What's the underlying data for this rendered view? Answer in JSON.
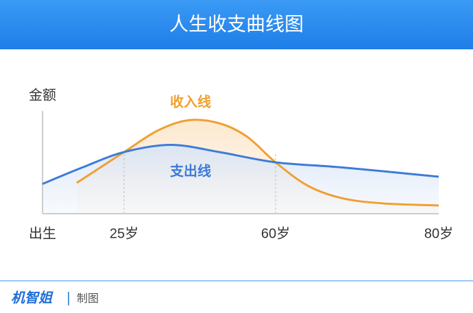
{
  "chart_data": {
    "type": "line",
    "title": "人生收支曲线图",
    "ylabel": "金额",
    "xlim": [
      0,
      80
    ],
    "xticks": [
      {
        "value": 0,
        "label": "出生"
      },
      {
        "value": 25,
        "label": "25岁"
      },
      {
        "value": 60,
        "label": "60岁"
      },
      {
        "value": 80,
        "label": "80岁"
      }
    ],
    "ylim": [
      0,
      100
    ],
    "series": [
      {
        "name": "收入线",
        "color": "#f0a030",
        "x": [
          10.5,
          25,
          32.8,
          39.9,
          47,
          53.4,
          60,
          64,
          68.2,
          73.2,
          80
        ],
        "values": [
          30,
          60,
          81,
          91,
          88,
          75,
          50,
          27,
          15,
          10,
          8
        ]
      },
      {
        "name": "支出线",
        "color": "#3d7bd9",
        "x": [
          0,
          12.2,
          25,
          35.9,
          47,
          60,
          68.2,
          80
        ],
        "values": [
          29,
          45,
          60,
          67,
          60,
          50,
          45,
          36
        ]
      }
    ]
  },
  "footer": {
    "brand": "机智姐",
    "note": "制图"
  }
}
